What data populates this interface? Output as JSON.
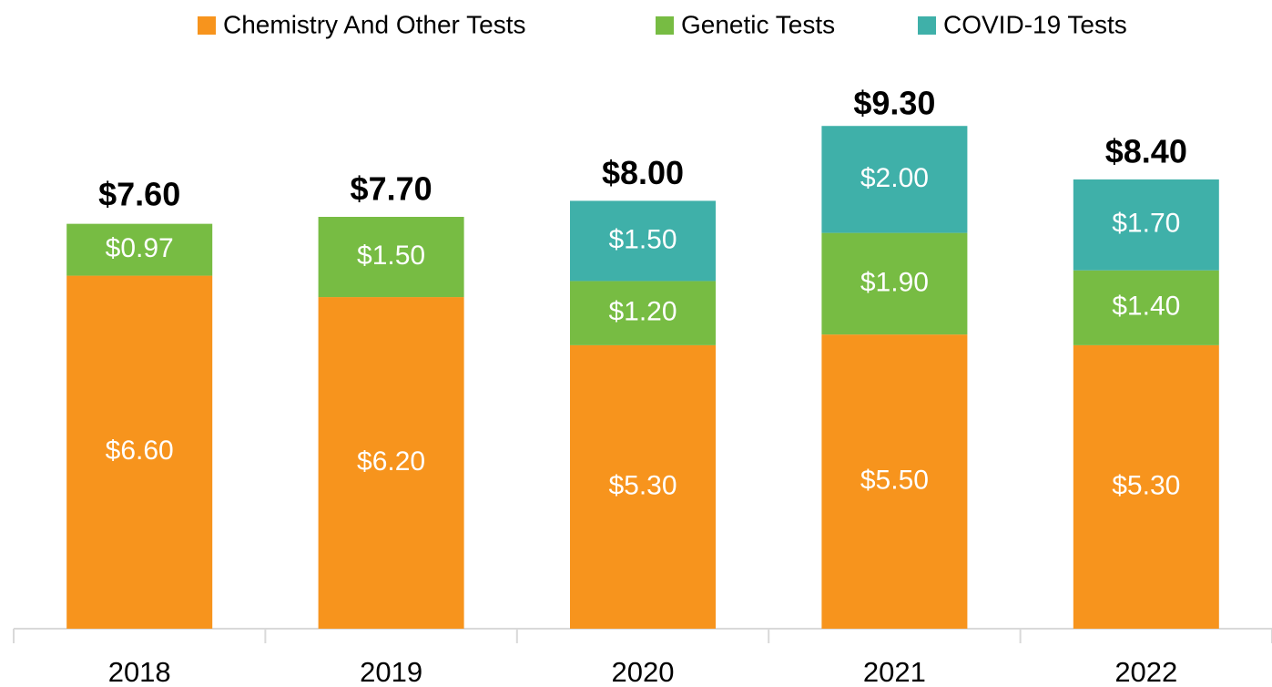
{
  "chart_data": {
    "type": "bar",
    "stacked": true,
    "categories": [
      "2018",
      "2019",
      "2020",
      "2021",
      "2022"
    ],
    "series": [
      {
        "name": "Chemistry And Other Tests",
        "color": "#F7941D",
        "values": [
          6.6,
          6.2,
          5.3,
          5.5,
          5.3
        ],
        "value_labels": [
          "$6.60",
          "$6.20",
          "$5.30",
          "$5.50",
          "$5.30"
        ]
      },
      {
        "name": "Genetic Tests",
        "color": "#77BC43",
        "values": [
          0.97,
          1.5,
          1.2,
          1.9,
          1.4
        ],
        "value_labels": [
          "$0.97",
          "$1.50",
          "$1.20",
          "$1.90",
          "$1.40"
        ]
      },
      {
        "name": "COVID-19 Tests",
        "color": "#3FB0A9",
        "values": [
          null,
          null,
          1.5,
          2.0,
          1.7
        ],
        "value_labels": [
          null,
          null,
          "$1.50",
          "$2.00",
          "$1.70"
        ]
      }
    ],
    "totals": [
      7.6,
      7.7,
      8.0,
      9.3,
      8.4
    ],
    "total_labels": [
      "$7.60",
      "$7.70",
      "$8.00",
      "$9.30",
      "$8.40"
    ],
    "legend": "top"
  }
}
